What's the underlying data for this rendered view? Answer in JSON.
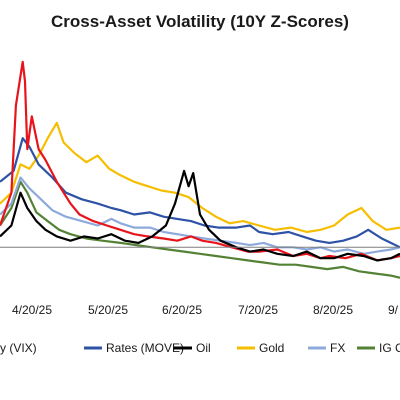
{
  "chart_data": {
    "type": "line",
    "title": "Cross-Asset Volatility (10Y Z-Scores)",
    "xlabel": "",
    "ylabel": "",
    "x_tick_labels": [
      "4/20/25",
      "5/20/25",
      "6/20/25",
      "7/20/25",
      "8/20/25",
      "9/"
    ],
    "x_range": [
      "2025-03-28",
      "2025-09-20"
    ],
    "y_range": [
      -1.5,
      9.5
    ],
    "grid": false,
    "legend_position": "bottom",
    "legend_labels": [
      "y (VIX)",
      "Rates (MOVE)",
      "Oil",
      "Gold",
      "FX",
      "IG Cre"
    ],
    "series": [
      {
        "name": "Equity (VIX)",
        "color": "#e8141c",
        "points": [
          [
            "2025-03-28",
            1.0
          ],
          [
            "2025-04-02",
            2.5
          ],
          [
            "2025-04-04",
            6.5
          ],
          [
            "2025-04-07",
            8.5
          ],
          [
            "2025-04-08",
            7.6
          ],
          [
            "2025-04-09",
            4.5
          ],
          [
            "2025-04-11",
            6.0
          ],
          [
            "2025-04-14",
            4.5
          ],
          [
            "2025-04-17",
            4.0
          ],
          [
            "2025-04-22",
            3.0
          ],
          [
            "2025-04-28",
            2.0
          ],
          [
            "2025-05-02",
            1.5
          ],
          [
            "2025-05-08",
            1.2
          ],
          [
            "2025-05-14",
            1.0
          ],
          [
            "2025-05-20",
            0.8
          ],
          [
            "2025-05-26",
            0.6
          ],
          [
            "2025-06-01",
            0.5
          ],
          [
            "2025-06-08",
            0.4
          ],
          [
            "2025-06-14",
            0.3
          ],
          [
            "2025-06-20",
            0.5
          ],
          [
            "2025-06-25",
            0.3
          ],
          [
            "2025-07-01",
            0.2
          ],
          [
            "2025-07-08",
            0.0
          ],
          [
            "2025-07-15",
            -0.2
          ],
          [
            "2025-07-20",
            -0.2
          ],
          [
            "2025-07-28",
            -0.1
          ],
          [
            "2025-08-04",
            -0.4
          ],
          [
            "2025-08-10",
            -0.3
          ],
          [
            "2025-08-16",
            -0.5
          ],
          [
            "2025-08-20",
            -0.4
          ],
          [
            "2025-08-27",
            -0.5
          ],
          [
            "2025-09-03",
            -0.3
          ],
          [
            "2025-09-10",
            -0.6
          ],
          [
            "2025-09-16",
            -0.5
          ],
          [
            "2025-09-20",
            -0.4
          ]
        ]
      },
      {
        "name": "Rates (MOVE)",
        "color": "#2e52a6",
        "points": [
          [
            "2025-03-28",
            3.0
          ],
          [
            "2025-04-03",
            3.5
          ],
          [
            "2025-04-07",
            5.0
          ],
          [
            "2025-04-10",
            4.6
          ],
          [
            "2025-04-14",
            3.8
          ],
          [
            "2025-04-20",
            3.2
          ],
          [
            "2025-04-26",
            2.5
          ],
          [
            "2025-05-03",
            2.2
          ],
          [
            "2025-05-10",
            2.0
          ],
          [
            "2025-05-16",
            1.8
          ],
          [
            "2025-05-20",
            1.7
          ],
          [
            "2025-05-26",
            1.5
          ],
          [
            "2025-06-02",
            1.6
          ],
          [
            "2025-06-08",
            1.4
          ],
          [
            "2025-06-14",
            1.3
          ],
          [
            "2025-06-20",
            1.2
          ],
          [
            "2025-06-26",
            1.0
          ],
          [
            "2025-07-02",
            0.9
          ],
          [
            "2025-07-10",
            0.9
          ],
          [
            "2025-07-16",
            1.0
          ],
          [
            "2025-07-20",
            0.7
          ],
          [
            "2025-07-26",
            0.6
          ],
          [
            "2025-08-02",
            0.7
          ],
          [
            "2025-08-08",
            0.5
          ],
          [
            "2025-08-14",
            0.3
          ],
          [
            "2025-08-20",
            0.2
          ],
          [
            "2025-08-26",
            0.3
          ],
          [
            "2025-09-01",
            0.5
          ],
          [
            "2025-09-06",
            0.8
          ],
          [
            "2025-09-12",
            0.4
          ],
          [
            "2025-09-16",
            0.2
          ],
          [
            "2025-09-20",
            0.0
          ]
        ]
      },
      {
        "name": "Oil",
        "color": "#000000",
        "points": [
          [
            "2025-03-28",
            0.5
          ],
          [
            "2025-04-02",
            1.0
          ],
          [
            "2025-04-06",
            2.5
          ],
          [
            "2025-04-09",
            1.8
          ],
          [
            "2025-04-13",
            1.2
          ],
          [
            "2025-04-17",
            0.8
          ],
          [
            "2025-04-22",
            0.5
          ],
          [
            "2025-04-28",
            0.3
          ],
          [
            "2025-05-04",
            0.5
          ],
          [
            "2025-05-10",
            0.4
          ],
          [
            "2025-05-16",
            0.6
          ],
          [
            "2025-05-22",
            0.3
          ],
          [
            "2025-05-28",
            0.2
          ],
          [
            "2025-06-03",
            0.5
          ],
          [
            "2025-06-09",
            1.0
          ],
          [
            "2025-06-13",
            2.0
          ],
          [
            "2025-06-17",
            3.5
          ],
          [
            "2025-06-19",
            2.8
          ],
          [
            "2025-06-21",
            3.4
          ],
          [
            "2025-06-24",
            1.5
          ],
          [
            "2025-06-28",
            0.8
          ],
          [
            "2025-07-03",
            0.3
          ],
          [
            "2025-07-10",
            0.0
          ],
          [
            "2025-07-16",
            -0.2
          ],
          [
            "2025-07-22",
            -0.1
          ],
          [
            "2025-07-28",
            -0.3
          ],
          [
            "2025-08-04",
            -0.4
          ],
          [
            "2025-08-10",
            -0.2
          ],
          [
            "2025-08-16",
            -0.5
          ],
          [
            "2025-08-22",
            -0.5
          ],
          [
            "2025-08-28",
            -0.3
          ],
          [
            "2025-09-04",
            -0.4
          ],
          [
            "2025-09-10",
            -0.6
          ],
          [
            "2025-09-16",
            -0.5
          ],
          [
            "2025-09-20",
            -0.3
          ]
        ]
      },
      {
        "name": "Gold",
        "color": "#f6be00",
        "points": [
          [
            "2025-03-28",
            2.0
          ],
          [
            "2025-04-02",
            2.5
          ],
          [
            "2025-04-06",
            3.8
          ],
          [
            "2025-04-10",
            3.6
          ],
          [
            "2025-04-14",
            4.2
          ],
          [
            "2025-04-18",
            5.0
          ],
          [
            "2025-04-22",
            5.7
          ],
          [
            "2025-04-25",
            4.8
          ],
          [
            "2025-04-30",
            4.3
          ],
          [
            "2025-05-05",
            3.9
          ],
          [
            "2025-05-10",
            4.2
          ],
          [
            "2025-05-15",
            3.6
          ],
          [
            "2025-05-20",
            3.3
          ],
          [
            "2025-05-26",
            3.0
          ],
          [
            "2025-06-01",
            2.8
          ],
          [
            "2025-06-07",
            2.6
          ],
          [
            "2025-06-13",
            2.5
          ],
          [
            "2025-06-19",
            2.3
          ],
          [
            "2025-06-25",
            1.8
          ],
          [
            "2025-07-01",
            1.4
          ],
          [
            "2025-07-07",
            1.1
          ],
          [
            "2025-07-13",
            1.2
          ],
          [
            "2025-07-20",
            1.0
          ],
          [
            "2025-07-27",
            0.8
          ],
          [
            "2025-08-03",
            0.9
          ],
          [
            "2025-08-10",
            0.7
          ],
          [
            "2025-08-16",
            0.8
          ],
          [
            "2025-08-22",
            1.0
          ],
          [
            "2025-08-28",
            1.5
          ],
          [
            "2025-09-03",
            1.8
          ],
          [
            "2025-09-08",
            1.2
          ],
          [
            "2025-09-14",
            0.8
          ],
          [
            "2025-09-20",
            0.9
          ]
        ]
      },
      {
        "name": "FX",
        "color": "#8eaadb",
        "points": [
          [
            "2025-03-28",
            1.5
          ],
          [
            "2025-04-02",
            2.0
          ],
          [
            "2025-04-06",
            3.2
          ],
          [
            "2025-04-10",
            2.7
          ],
          [
            "2025-04-14",
            2.3
          ],
          [
            "2025-04-20",
            1.7
          ],
          [
            "2025-04-26",
            1.4
          ],
          [
            "2025-05-03",
            1.2
          ],
          [
            "2025-05-10",
            1.0
          ],
          [
            "2025-05-16",
            1.3
          ],
          [
            "2025-05-20",
            1.1
          ],
          [
            "2025-05-26",
            0.9
          ],
          [
            "2025-06-02",
            0.9
          ],
          [
            "2025-06-08",
            0.7
          ],
          [
            "2025-06-14",
            0.6
          ],
          [
            "2025-06-20",
            0.5
          ],
          [
            "2025-06-26",
            0.4
          ],
          [
            "2025-07-03",
            0.3
          ],
          [
            "2025-07-10",
            0.2
          ],
          [
            "2025-07-16",
            0.1
          ],
          [
            "2025-07-22",
            0.2
          ],
          [
            "2025-07-28",
            0.0
          ],
          [
            "2025-08-04",
            0.0
          ],
          [
            "2025-08-10",
            -0.1
          ],
          [
            "2025-08-16",
            0.0
          ],
          [
            "2025-08-22",
            -0.2
          ],
          [
            "2025-08-28",
            -0.1
          ],
          [
            "2025-09-04",
            -0.3
          ],
          [
            "2025-09-10",
            -0.2
          ],
          [
            "2025-09-16",
            -0.1
          ],
          [
            "2025-09-20",
            0.0
          ]
        ]
      },
      {
        "name": "IG Credit",
        "color": "#548235",
        "points": [
          [
            "2025-03-28",
            1.0
          ],
          [
            "2025-04-02",
            1.8
          ],
          [
            "2025-04-06",
            3.0
          ],
          [
            "2025-04-09",
            2.5
          ],
          [
            "2025-04-13",
            1.6
          ],
          [
            "2025-04-18",
            1.2
          ],
          [
            "2025-04-23",
            0.8
          ],
          [
            "2025-04-28",
            0.6
          ],
          [
            "2025-05-05",
            0.4
          ],
          [
            "2025-05-12",
            0.3
          ],
          [
            "2025-05-20",
            0.2
          ],
          [
            "2025-05-27",
            0.1
          ],
          [
            "2025-06-03",
            0.0
          ],
          [
            "2025-06-10",
            -0.1
          ],
          [
            "2025-06-17",
            -0.2
          ],
          [
            "2025-06-24",
            -0.3
          ],
          [
            "2025-07-01",
            -0.4
          ],
          [
            "2025-07-08",
            -0.5
          ],
          [
            "2025-07-15",
            -0.6
          ],
          [
            "2025-07-22",
            -0.7
          ],
          [
            "2025-07-29",
            -0.8
          ],
          [
            "2025-08-05",
            -0.8
          ],
          [
            "2025-08-12",
            -0.9
          ],
          [
            "2025-08-19",
            -1.0
          ],
          [
            "2025-08-26",
            -0.9
          ],
          [
            "2025-09-02",
            -1.1
          ],
          [
            "2025-09-09",
            -1.2
          ],
          [
            "2025-09-16",
            -1.3
          ],
          [
            "2025-09-20",
            -1.4
          ]
        ]
      }
    ]
  }
}
